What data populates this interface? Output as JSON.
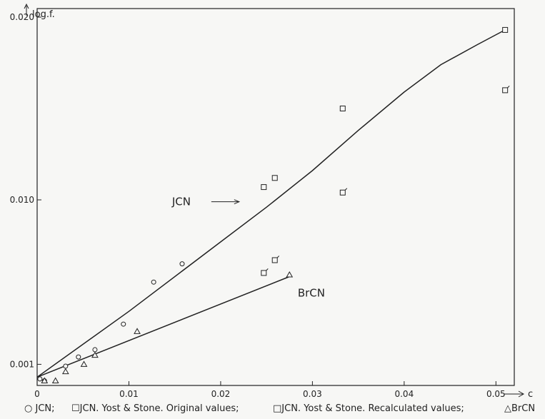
{
  "chart_data": {
    "type": "scatter",
    "ylabel": "log.f.",
    "xlabel": "c",
    "xlim": [
      0,
      0.052
    ],
    "ylim": [
      0,
      0.02
    ],
    "grid": false,
    "x_ticks": [
      {
        "value": 0,
        "label": "0"
      },
      {
        "value": 0.01,
        "label": "0.01"
      },
      {
        "value": 0.02,
        "label": "0.02"
      },
      {
        "value": 0.03,
        "label": "0.03"
      },
      {
        "value": 0.04,
        "label": "0.04"
      },
      {
        "value": 0.05,
        "label": "0.05"
      }
    ],
    "y_ticks": [
      {
        "value": 0.001,
        "label": "0.001"
      },
      {
        "value": 0.01,
        "label": "0.010"
      },
      {
        "value": 0.02,
        "label": "0.020"
      }
    ],
    "series": [
      {
        "name": "JCN",
        "marker": "circle",
        "points": [
          [
            0.0003,
            0.0002
          ],
          [
            0.0008,
            0.0001
          ],
          [
            0.0031,
            0.0009
          ],
          [
            0.0045,
            0.0014
          ],
          [
            0.0063,
            0.0018
          ],
          [
            0.0094,
            0.0032
          ],
          [
            0.0127,
            0.0055
          ],
          [
            0.0158,
            0.0065
          ]
        ]
      },
      {
        "name": "JCN. Yost & Stone. Original values",
        "marker": "square-tick",
        "points": [
          [
            0.0247,
            0.006
          ],
          [
            0.0259,
            0.0067
          ],
          [
            0.0333,
            0.0104
          ],
          [
            0.051,
            0.016
          ]
        ]
      },
      {
        "name": "JCN. Yost & Stone. Recalculated values",
        "marker": "square",
        "points": [
          [
            0.0247,
            0.0107
          ],
          [
            0.0259,
            0.0112
          ],
          [
            0.0333,
            0.015
          ],
          [
            0.051,
            0.0193
          ]
        ]
      },
      {
        "name": "BrCN",
        "marker": "triangle",
        "points": [
          [
            0.0008,
            0.0001
          ],
          [
            0.002,
            0.0001
          ],
          [
            0.0031,
            0.0006
          ],
          [
            0.0051,
            0.001
          ],
          [
            0.0063,
            0.0015
          ],
          [
            0.0109,
            0.0028
          ],
          [
            0.0275,
            0.0059
          ]
        ]
      }
    ],
    "curves": [
      {
        "label": "JCN",
        "points": [
          [
            0,
            0.0003
          ],
          [
            0.01,
            0.0039
          ],
          [
            0.02,
            0.0077
          ],
          [
            0.025,
            0.0096
          ],
          [
            0.03,
            0.0116
          ],
          [
            0.035,
            0.0138
          ],
          [
            0.04,
            0.0159
          ],
          [
            0.044,
            0.0174
          ],
          [
            0.048,
            0.0185
          ],
          [
            0.051,
            0.0193
          ]
        ]
      },
      {
        "label": "BrCN",
        "points": [
          [
            0,
            0.0003
          ],
          [
            0.0275,
            0.0058
          ]
        ]
      }
    ],
    "annotations": [
      {
        "text": "JCN",
        "x": 0.0147,
        "y": 0.0097,
        "arrow": true
      },
      {
        "text": "BrCN",
        "x": 0.0284,
        "y": 0.0047,
        "arrow": false
      }
    ]
  },
  "legend": {
    "items": [
      {
        "symbol": "○",
        "label": "JCN;"
      },
      {
        "symbol": "☐",
        "label": "JCN. Yost & Stone. Original values;"
      },
      {
        "symbol": "□",
        "label": "JCN. Yost & Stone. Recalculated values;"
      },
      {
        "symbol": "△",
        "label": "BrCN"
      }
    ]
  }
}
